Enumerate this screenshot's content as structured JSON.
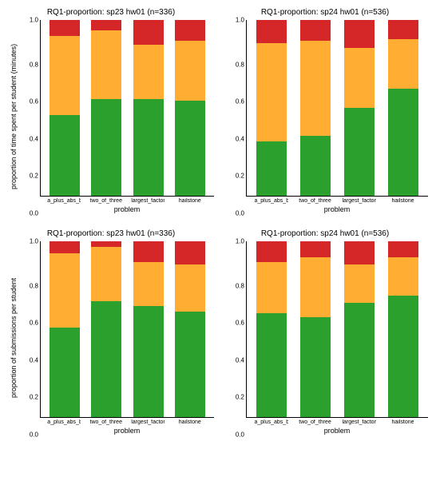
{
  "colors": {
    "green": "#2ca02c",
    "orange": "#ffae33",
    "red": "#d62728",
    "background": "#ffffff",
    "axis": "#000000"
  },
  "categories": [
    "a_plus_abs_b",
    "two_of_three",
    "largest_factor",
    "hailstone"
  ],
  "xlabel": "problem",
  "ylim": [
    0.0,
    1.0
  ],
  "ytick_step": 0.2,
  "yticks": [
    "1.0",
    "0.8",
    "0.6",
    "0.4",
    "0.2",
    "0.0"
  ],
  "bar_width": 0.7,
  "panels": [
    {
      "title": "RQ1-proportion: sp23 hw01 (n=336)",
      "ylabel": "proportion of time spent per student (minutes)",
      "values": {
        "green": [
          0.46,
          0.55,
          0.55,
          0.54
        ],
        "orange": [
          0.45,
          0.39,
          0.31,
          0.34
        ],
        "red": [
          0.09,
          0.06,
          0.14,
          0.12
        ]
      }
    },
    {
      "title": "RQ1-proportion: sp24 hw01 (n=536)",
      "ylabel": "",
      "values": {
        "green": [
          0.31,
          0.34,
          0.5,
          0.61
        ],
        "orange": [
          0.56,
          0.54,
          0.34,
          0.28
        ],
        "red": [
          0.13,
          0.12,
          0.16,
          0.11
        ]
      }
    },
    {
      "title": "RQ1-proportion: sp23 hw01 (n=336)",
      "ylabel": "proportion of submissions per student",
      "values": {
        "green": [
          0.51,
          0.66,
          0.63,
          0.6
        ],
        "orange": [
          0.42,
          0.31,
          0.25,
          0.27
        ],
        "red": [
          0.07,
          0.03,
          0.12,
          0.13
        ]
      }
    },
    {
      "title": "RQ1-proportion: sp24 hw01 (n=536)",
      "ylabel": "",
      "values": {
        "green": [
          0.59,
          0.57,
          0.65,
          0.69
        ],
        "orange": [
          0.29,
          0.34,
          0.22,
          0.22
        ],
        "red": [
          0.12,
          0.09,
          0.13,
          0.09
        ]
      }
    }
  ]
}
